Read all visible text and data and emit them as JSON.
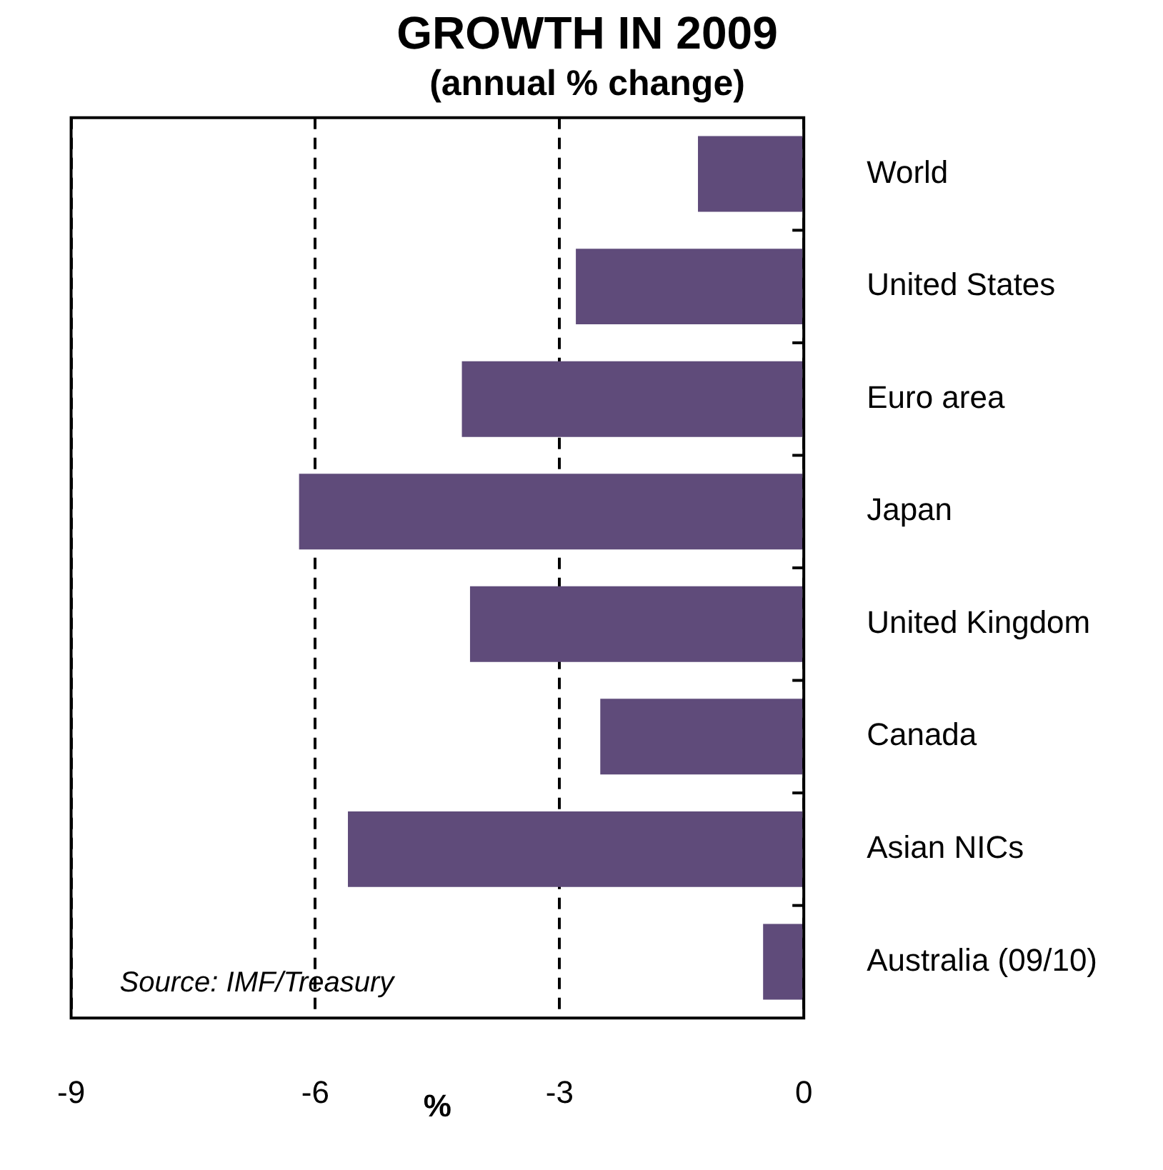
{
  "chart_data": {
    "type": "bar",
    "orientation": "horizontal",
    "title": "GROWTH IN 2009",
    "subtitle": "(annual % change)",
    "xlabel": "%",
    "categories": [
      "World",
      "United States",
      "Euro area",
      "Japan",
      "United Kingdom",
      "Canada",
      "Asian NICs",
      "Australia (09/10)"
    ],
    "values": [
      -1.3,
      -2.8,
      -4.2,
      -6.2,
      -4.1,
      -2.5,
      -5.6,
      -0.5
    ],
    "color": "#5f4b7a",
    "xlim": [
      -9,
      0
    ],
    "xticks": [
      -9,
      -6,
      -3,
      0
    ],
    "grid": "x",
    "line_style": "dashed",
    "annotations": [
      "Source: IMF/Treasury"
    ]
  }
}
